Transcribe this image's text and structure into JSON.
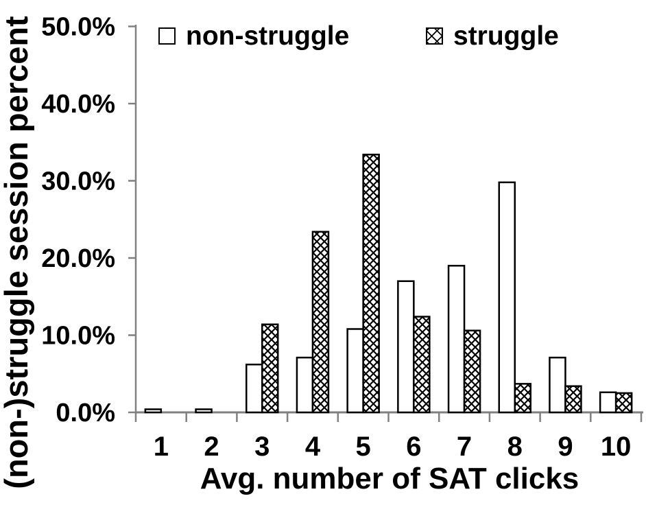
{
  "chart_data": {
    "type": "bar",
    "title": "",
    "xlabel": "Avg. number of SAT clicks",
    "ylabel": "(non-)struggle session percent",
    "categories": [
      "1",
      "2",
      "3",
      "4",
      "5",
      "6",
      "7",
      "8",
      "9",
      "10"
    ],
    "series": [
      {
        "name": "non-struggle",
        "pattern": "white-empty",
        "values": [
          0.4,
          0.4,
          6.2,
          7.1,
          10.8,
          17.0,
          19.0,
          29.8,
          7.1,
          2.6
        ]
      },
      {
        "name": "struggle",
        "pattern": "diagonal-crosshatch",
        "values": [
          0.0,
          0.0,
          11.4,
          23.4,
          33.4,
          12.4,
          10.6,
          3.7,
          3.4,
          2.5
        ]
      }
    ],
    "y_ticks": [
      "0.0%",
      "10.0%",
      "20.0%",
      "30.0%",
      "40.0%",
      "50.0%"
    ],
    "ylim": [
      0,
      50
    ],
    "grid": false,
    "legend_position": "top",
    "colors": {
      "bar_fill": "#ffffff",
      "bar_stroke": "#000000",
      "hatch": "#000000",
      "axis": "#808080",
      "text": "#000000"
    }
  }
}
